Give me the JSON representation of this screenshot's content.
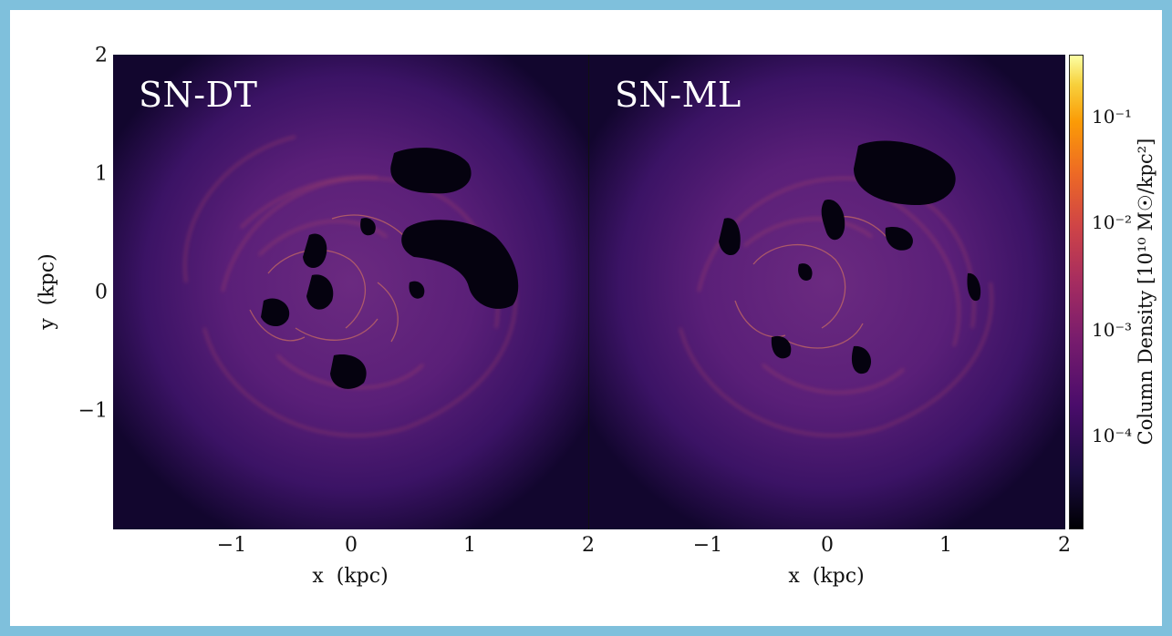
{
  "panels": [
    {
      "label": "SN-DT"
    },
    {
      "label": "SN-ML"
    }
  ],
  "x_axis": {
    "label": "x  (kpc)",
    "ticks_left": [
      "−1",
      "0",
      "1",
      "2"
    ],
    "ticks_right": [
      "−1",
      "0",
      "1",
      "2"
    ]
  },
  "y_axis": {
    "label": "y  (kpc)",
    "ticks": [
      "2",
      "1",
      "0",
      "−1"
    ]
  },
  "colorbar": {
    "label": "Column Density [10¹⁰ M☉/kpc²]",
    "ticks": [
      "10⁻¹",
      "10⁻²",
      "10⁻³",
      "10⁻⁴"
    ]
  },
  "colors": {
    "frame": "#7fc0dc",
    "background_gas": "#3a1460",
    "void": "#000004",
    "filament": "#e0704a"
  }
}
